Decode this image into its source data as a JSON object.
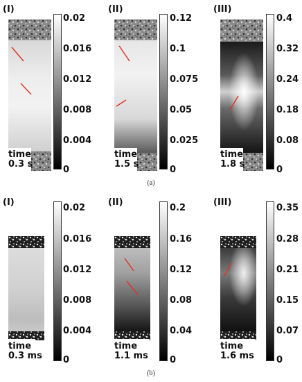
{
  "figure": {
    "row_a": {
      "caption": "(a)",
      "panels": [
        {
          "label": "(I)",
          "time_label": "time",
          "time_value": "0.3 s",
          "colorbar_ticks": [
            "0.02",
            "0.016",
            "0.012",
            "0.008",
            "0.004",
            "0"
          ]
        },
        {
          "label": "(II)",
          "time_label": "time",
          "time_value": "1.5 s",
          "colorbar_ticks": [
            "0.12",
            "0.1",
            "0.075",
            "0.05",
            "0.025",
            "0"
          ]
        },
        {
          "label": "(III)",
          "time_label": "time",
          "time_value": "1.8 s",
          "colorbar_ticks": [
            "0.4",
            "0.32",
            "0.24",
            "0.18",
            "0.08",
            "0"
          ]
        }
      ]
    },
    "row_b": {
      "caption": "(b)",
      "panels": [
        {
          "label": "(I)",
          "time_label": "time",
          "time_value": "0.3 ms",
          "colorbar_ticks": [
            "0.02",
            "0.016",
            "0.012",
            "0.008",
            "0.004",
            "0"
          ]
        },
        {
          "label": "(II)",
          "time_label": "time",
          "time_value": "1.1 ms",
          "colorbar_ticks": [
            "0.2",
            "0.16",
            "0.12",
            "0.08",
            "0.04",
            "0"
          ]
        },
        {
          "label": "(III)",
          "time_label": "time",
          "time_value": "1.6 ms",
          "colorbar_ticks": [
            "0.35",
            "0.28",
            "0.21",
            "0.15",
            "0.07",
            "0"
          ]
        }
      ]
    },
    "colors": {
      "crack_line": "#e03020",
      "colorbar_top": "#ffffff",
      "colorbar_bottom": "#000000"
    }
  }
}
